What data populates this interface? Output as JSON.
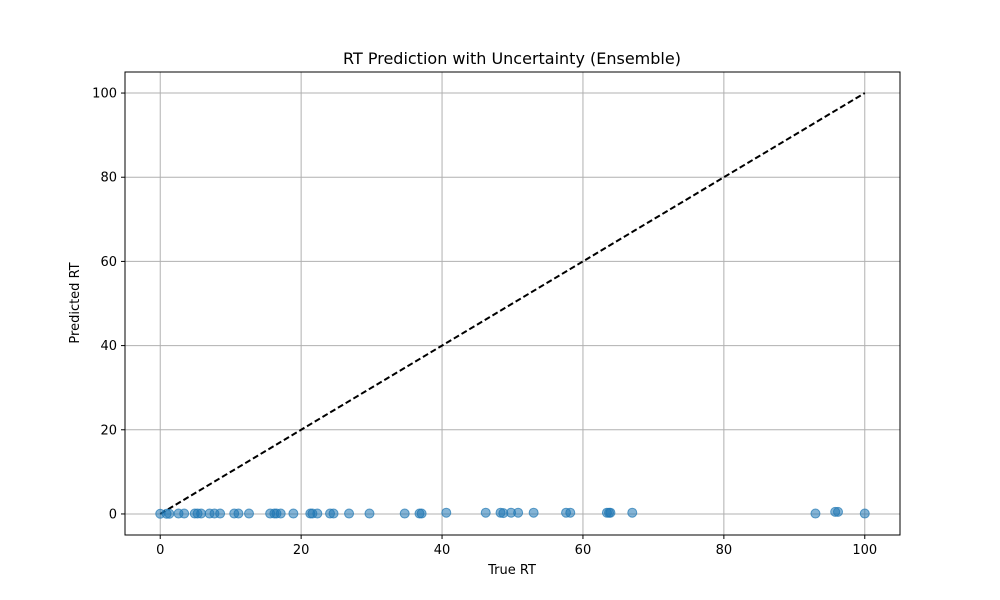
{
  "chart_data": {
    "type": "scatter",
    "title": "RT Prediction with Uncertainty (Ensemble)",
    "xlabel": "True RT",
    "ylabel": "Predicted RT",
    "xlim": [
      -5,
      105
    ],
    "ylim": [
      -5,
      105
    ],
    "xticks": [
      0,
      20,
      40,
      60,
      80,
      100
    ],
    "yticks": [
      0,
      20,
      40,
      60,
      80,
      100
    ],
    "grid": true,
    "point_color": "#1f77b4",
    "reference_line": {
      "style": "dashed",
      "color": "#000000",
      "x": [
        0,
        100
      ],
      "y": [
        0,
        100
      ]
    },
    "series": [
      {
        "x": [
          0.0,
          0.9,
          1.3,
          2.6,
          3.4,
          4.9,
          5.3,
          5.8,
          7.0,
          7.7,
          8.5,
          10.5,
          11.1,
          12.6,
          15.6,
          16.2,
          16.5,
          17.1,
          18.9,
          21.3,
          21.6,
          22.3,
          24.1,
          24.6,
          26.8,
          29.7,
          34.7,
          36.8,
          37.1,
          40.6,
          46.2,
          48.3,
          48.7,
          49.8,
          50.8,
          53.0,
          57.6,
          58.2,
          63.4,
          63.7,
          63.9,
          67.0,
          93.0,
          95.8,
          96.2,
          100.0
        ],
        "y": [
          0.05,
          0.05,
          0.05,
          0.1,
          0.1,
          0.1,
          0.1,
          0.1,
          0.1,
          0.1,
          0.1,
          0.1,
          0.1,
          0.1,
          0.1,
          0.1,
          0.1,
          0.1,
          0.1,
          0.1,
          0.1,
          0.1,
          0.1,
          0.1,
          0.1,
          0.1,
          0.1,
          0.1,
          0.1,
          0.3,
          0.3,
          0.3,
          0.2,
          0.3,
          0.3,
          0.3,
          0.3,
          0.3,
          0.3,
          0.3,
          0.3,
          0.3,
          0.1,
          0.5,
          0.5,
          0.1
        ]
      }
    ]
  }
}
